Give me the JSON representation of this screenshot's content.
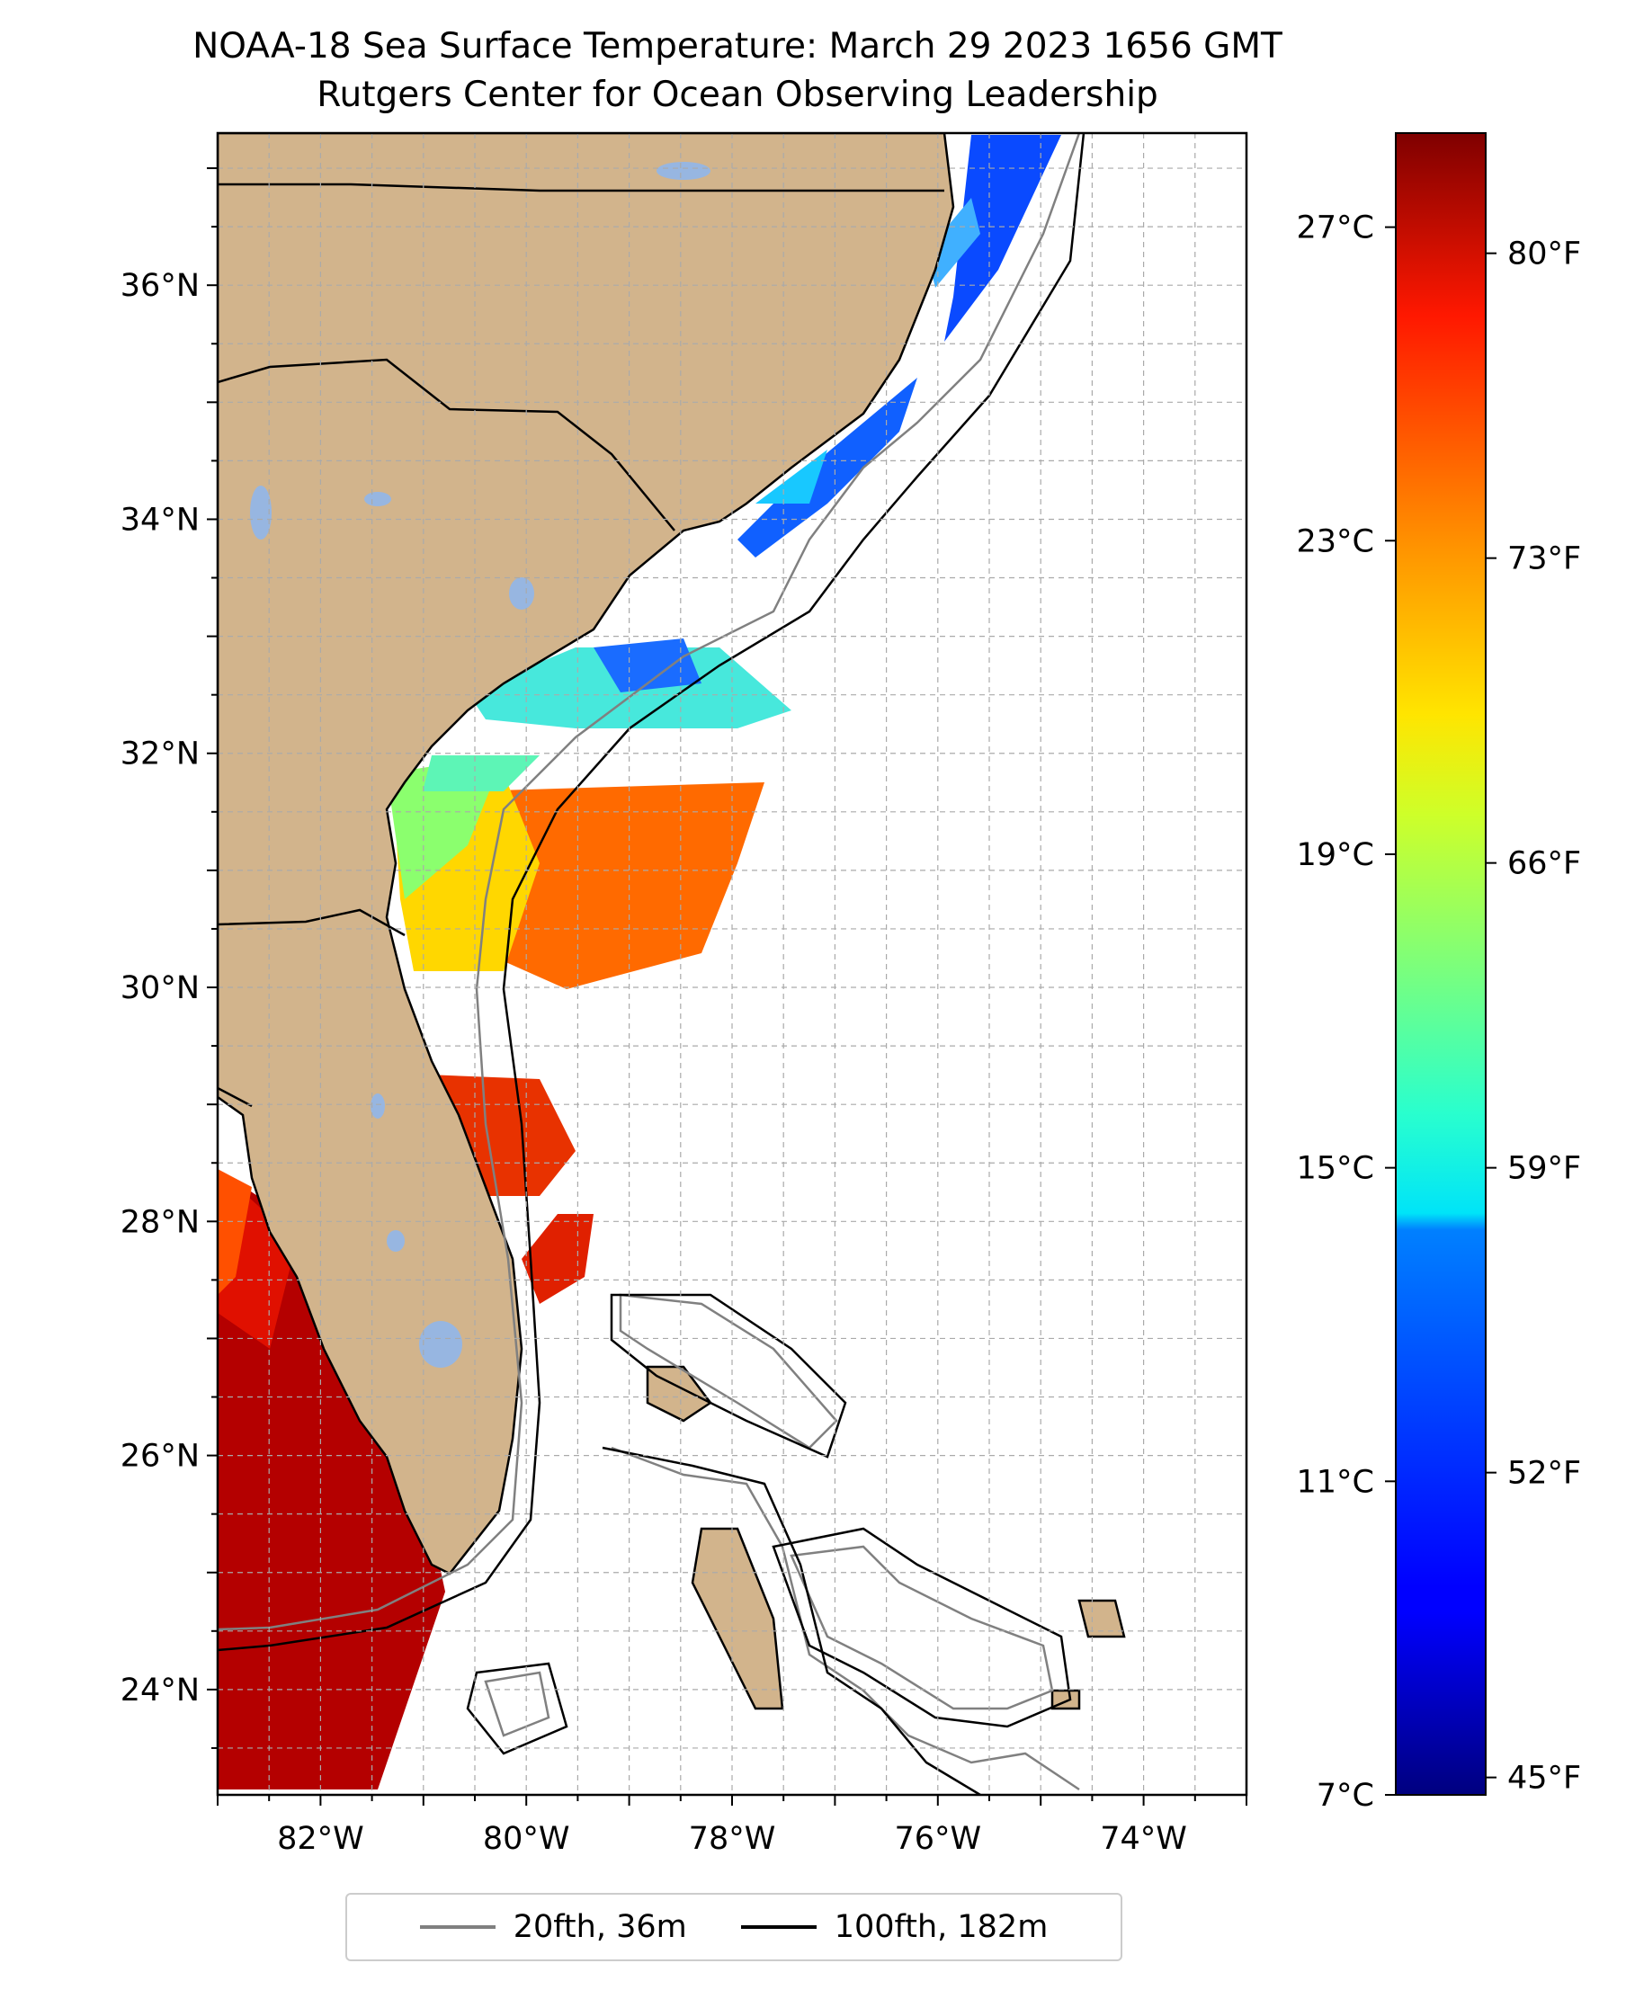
{
  "title": "NOAA-18 Sea Surface Temperature: March 29 2023 1656 GMT",
  "subtitle": "Rutgers Center for Ocean Observing Leadership",
  "map": {
    "lon_range": [
      -83,
      -73
    ],
    "lat_range": [
      23.1,
      37.3
    ],
    "lon_ticks": [
      {
        "value": -82,
        "label": "82°W"
      },
      {
        "value": -80,
        "label": "80°W"
      },
      {
        "value": -78,
        "label": "78°W"
      },
      {
        "value": -76,
        "label": "76°W"
      },
      {
        "value": -74,
        "label": "74°W"
      }
    ],
    "lat_ticks": [
      {
        "value": 24,
        "label": "24°N"
      },
      {
        "value": 26,
        "label": "26°N"
      },
      {
        "value": 28,
        "label": "28°N"
      },
      {
        "value": 30,
        "label": "30°N"
      },
      {
        "value": 32,
        "label": "32°N"
      },
      {
        "value": 34,
        "label": "34°N"
      },
      {
        "value": 36,
        "label": "36°N"
      }
    ],
    "gridlines": true,
    "land_color": "#d2b48c",
    "lake_color": "#97b6e1"
  },
  "colorbar": {
    "min_c": 7,
    "max_c": 28.2,
    "colormap": "jet",
    "celsius_ticks": [
      {
        "value": 7,
        "label": "7°C"
      },
      {
        "value": 11,
        "label": "11°C"
      },
      {
        "value": 15,
        "label": "15°C"
      },
      {
        "value": 19,
        "label": "19°C"
      },
      {
        "value": 23,
        "label": "23°C"
      },
      {
        "value": 27,
        "label": "27°C"
      }
    ],
    "fahrenheit_ticks": [
      {
        "value": 45,
        "label": "45°F"
      },
      {
        "value": 52,
        "label": "52°F"
      },
      {
        "value": 59,
        "label": "59°F"
      },
      {
        "value": 66,
        "label": "66°F"
      },
      {
        "value": 73,
        "label": "73°F"
      },
      {
        "value": 80,
        "label": "80°F"
      }
    ]
  },
  "legend": {
    "items": [
      {
        "label": "20fth, 36m",
        "color": "#808080"
      },
      {
        "label": "100fth, 182m",
        "color": "#000000"
      }
    ]
  }
}
